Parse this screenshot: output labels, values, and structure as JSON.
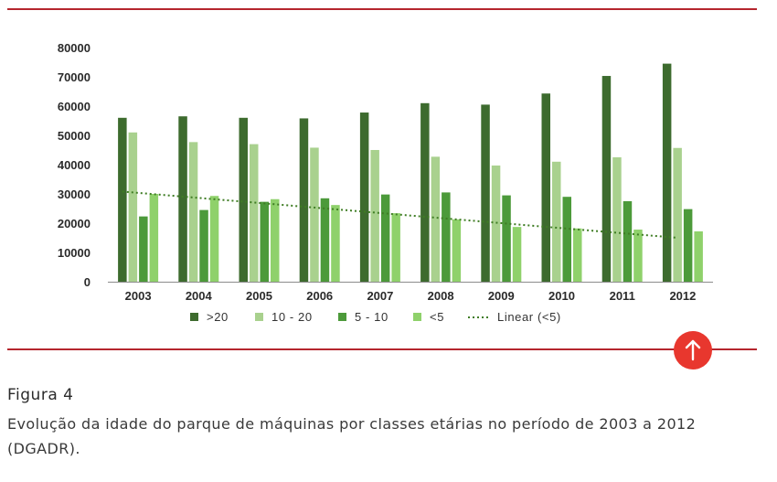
{
  "chart_data": {
    "type": "bar",
    "categories": [
      "2003",
      "2004",
      "2005",
      "2006",
      "2007",
      "2008",
      "2009",
      "2010",
      "2011",
      "2012"
    ],
    "series": [
      {
        "name": ">20",
        "color": "#3d6b2e",
        "values": [
          56000,
          56500,
          56000,
          55800,
          57800,
          61000,
          60500,
          64300,
          70300,
          74500
        ]
      },
      {
        "name": "10 - 20",
        "color": "#a9d18e",
        "values": [
          51000,
          47700,
          47000,
          45800,
          45000,
          42700,
          39700,
          41000,
          42500,
          45700
        ]
      },
      {
        "name": "5 - 10",
        "color": "#4c9a3a",
        "values": [
          22300,
          24500,
          27300,
          28500,
          29800,
          30500,
          29500,
          29000,
          27500,
          24800
        ]
      },
      {
        "name": "<5",
        "color": "#8fd16b",
        "values": [
          30000,
          29300,
          28200,
          26200,
          23400,
          21300,
          18700,
          18200,
          17800,
          17200
        ]
      }
    ],
    "trendline": {
      "name": "Linear (<5)",
      "color": "#3f7d24",
      "start": 30800,
      "end": 15000
    },
    "yticks": [
      "0",
      "10000",
      "20000",
      "30000",
      "40000",
      "50000",
      "60000",
      "70000",
      "80000"
    ],
    "ylim": [
      0,
      80000
    ],
    "legend_position": "bottom",
    "grid": false
  },
  "caption": {
    "title": "Figura 4",
    "text": "Evolução da idade do parque de máquinas por classes etárias no período de 2003 a 2012 (DGADR)."
  },
  "colors": {
    "rule": "#b5262e",
    "button": "#e8372e"
  },
  "up_button_icon": "arrow-up-icon"
}
